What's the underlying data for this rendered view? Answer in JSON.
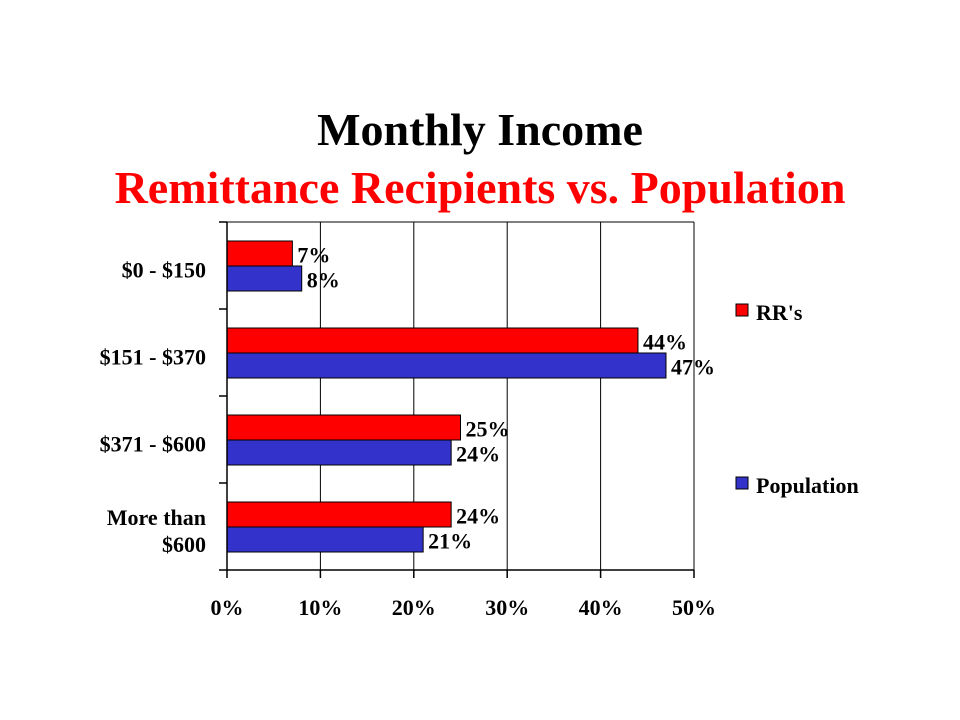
{
  "title": "Monthly Income",
  "subtitle": "Remittance Recipients vs. Population",
  "colors": {
    "title": "#000000",
    "subtitle": "#ff0000",
    "rrs": "#ff0000",
    "population": "#3333cc",
    "grid": "#000000"
  },
  "chart_data": {
    "type": "bar",
    "orientation": "horizontal",
    "categories": [
      "$0 - $150",
      "$151 - $370",
      "$371 - $600",
      "More than $600"
    ],
    "category_lines": [
      [
        "$0 - $150"
      ],
      [
        "$151 - $370"
      ],
      [
        "$371 - $600"
      ],
      [
        "More than",
        "$600"
      ]
    ],
    "series": [
      {
        "name": "RR's",
        "values": [
          7,
          44,
          25,
          24
        ],
        "labels": [
          "7%",
          "44%",
          "25%",
          "24%"
        ],
        "color": "#ff0000"
      },
      {
        "name": "Population",
        "values": [
          8,
          47,
          24,
          21
        ],
        "labels": [
          "8%",
          "47%",
          "24%",
          "21%"
        ],
        "color": "#3333cc"
      }
    ],
    "xlim": [
      0,
      50
    ],
    "xticks": [
      0,
      10,
      20,
      30,
      40,
      50
    ],
    "xtick_labels": [
      "0%",
      "10%",
      "20%",
      "30%",
      "40%",
      "50%"
    ],
    "grid": true,
    "legend_placement": "right"
  }
}
